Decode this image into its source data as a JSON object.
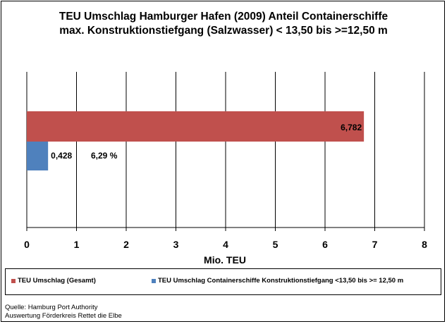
{
  "chart_data": {
    "type": "bar",
    "orientation": "horizontal",
    "title_line1": "TEU Umschlag Hamburger Hafen (2009)  Anteil Containerschiffe",
    "title_line2": "max. Konstruktionstiefgang (Salzwasser) < 13,50 bis >=12,50 m",
    "xlabel": "Mio. TEU",
    "xlim": [
      0,
      8
    ],
    "xticks": [
      "0",
      "1",
      "2",
      "3",
      "4",
      "5",
      "6",
      "7",
      "8"
    ],
    "grid": "vertical",
    "legend_position": "bottom",
    "series": [
      {
        "name": "TEU Umschlag (Gesamt)",
        "value": 6.782,
        "label": "6,782",
        "color": "#c0504d"
      },
      {
        "name": "TEU Umschlag Containerschiffe Konstruktionstiefgang <13,50 bis >= 12,50 m",
        "value": 0.428,
        "label": "0,428",
        "color": "#4f81bd"
      }
    ],
    "share_annotation": "6,29 %"
  },
  "source": {
    "line1": "Quelle: Hamburg Port Authority",
    "line2": "Auswertung Förderkreis Rettet die Elbe"
  }
}
